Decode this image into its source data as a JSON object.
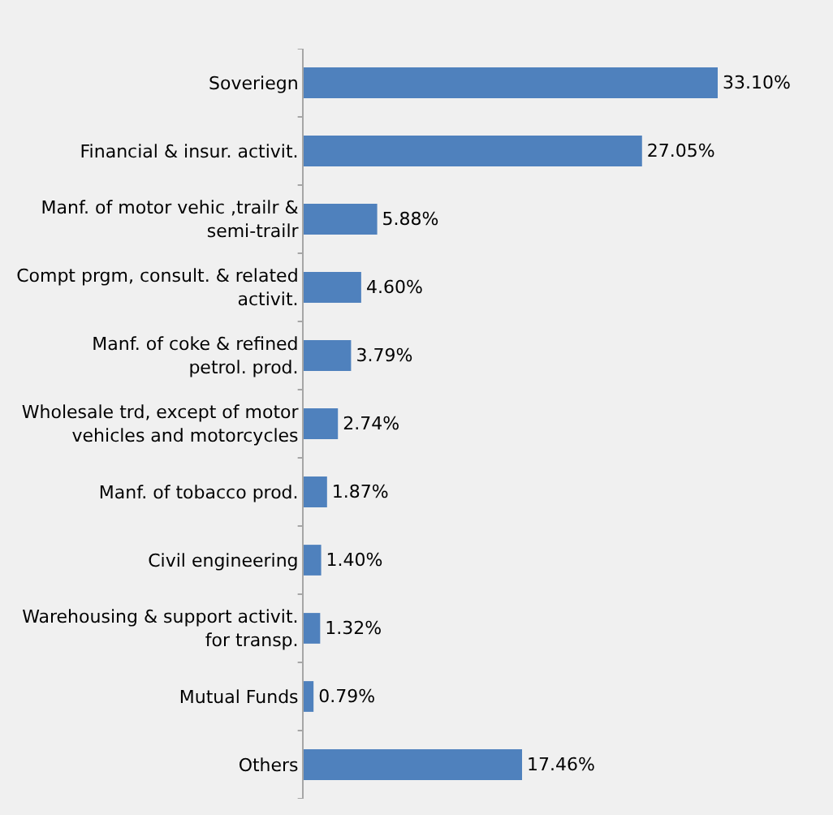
{
  "chart_data": {
    "type": "bar",
    "orientation": "horizontal",
    "categories": [
      "Soveriegn",
      "Financial & insur. activit.",
      "Manf. of motor vehic ,trailr & semi-trailr",
      "Compt prgm, consult. & related activit.",
      "Manf. of coke & refined petrol. prod.",
      "Wholesale trd, except of motor vehicles and motorcycles",
      "Manf. of tobacco prod.",
      "Civil engineering",
      "Warehousing & support activit. for transp.",
      "Mutual Funds",
      "Others"
    ],
    "values": [
      33.1,
      27.05,
      5.88,
      4.6,
      3.79,
      2.74,
      1.87,
      1.4,
      1.32,
      0.79,
      17.46
    ],
    "value_labels": [
      "33.10%",
      "27.05%",
      "5.88%",
      "4.60%",
      "3.79%",
      "2.74%",
      "1.87%",
      "1.40%",
      "1.32%",
      "0.79%",
      "17.46%"
    ],
    "color": "#4f81bd"
  }
}
